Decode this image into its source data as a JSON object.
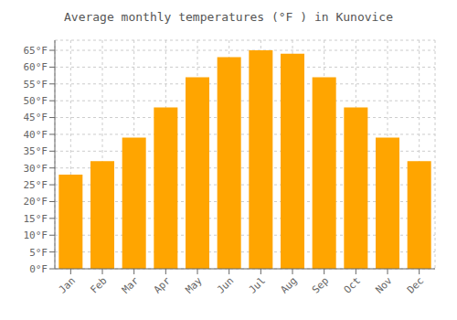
{
  "chart_data": {
    "type": "bar",
    "title": "Average monthly temperatures (°F ) in Kunovice",
    "categories": [
      "Jan",
      "Feb",
      "Mar",
      "Apr",
      "May",
      "Jun",
      "Jul",
      "Aug",
      "Sep",
      "Oct",
      "Nov",
      "Dec"
    ],
    "values": [
      28.0,
      32.0,
      39.0,
      48.0,
      57.0,
      63.0,
      65.0,
      64.0,
      57.0,
      48.0,
      39.0,
      32.0
    ],
    "color": "#FFA500",
    "ylim": [
      0,
      68
    ],
    "yticks": [
      {
        "value": 0,
        "label": "0°F"
      },
      {
        "value": 5,
        "label": "5°F"
      },
      {
        "value": 10,
        "label": "10°F"
      },
      {
        "value": 15,
        "label": "15°F"
      },
      {
        "value": 20,
        "label": "20°F"
      },
      {
        "value": 25,
        "label": "25°F"
      },
      {
        "value": 30,
        "label": "30°F"
      },
      {
        "value": 35,
        "label": "35°F"
      },
      {
        "value": 40,
        "label": "40°F"
      },
      {
        "value": 45,
        "label": "45°F"
      },
      {
        "value": 50,
        "label": "50°F"
      },
      {
        "value": 55,
        "label": "55°F"
      },
      {
        "value": 60,
        "label": "60°F"
      },
      {
        "value": 65,
        "label": "65°F"
      }
    ],
    "grid": true
  }
}
